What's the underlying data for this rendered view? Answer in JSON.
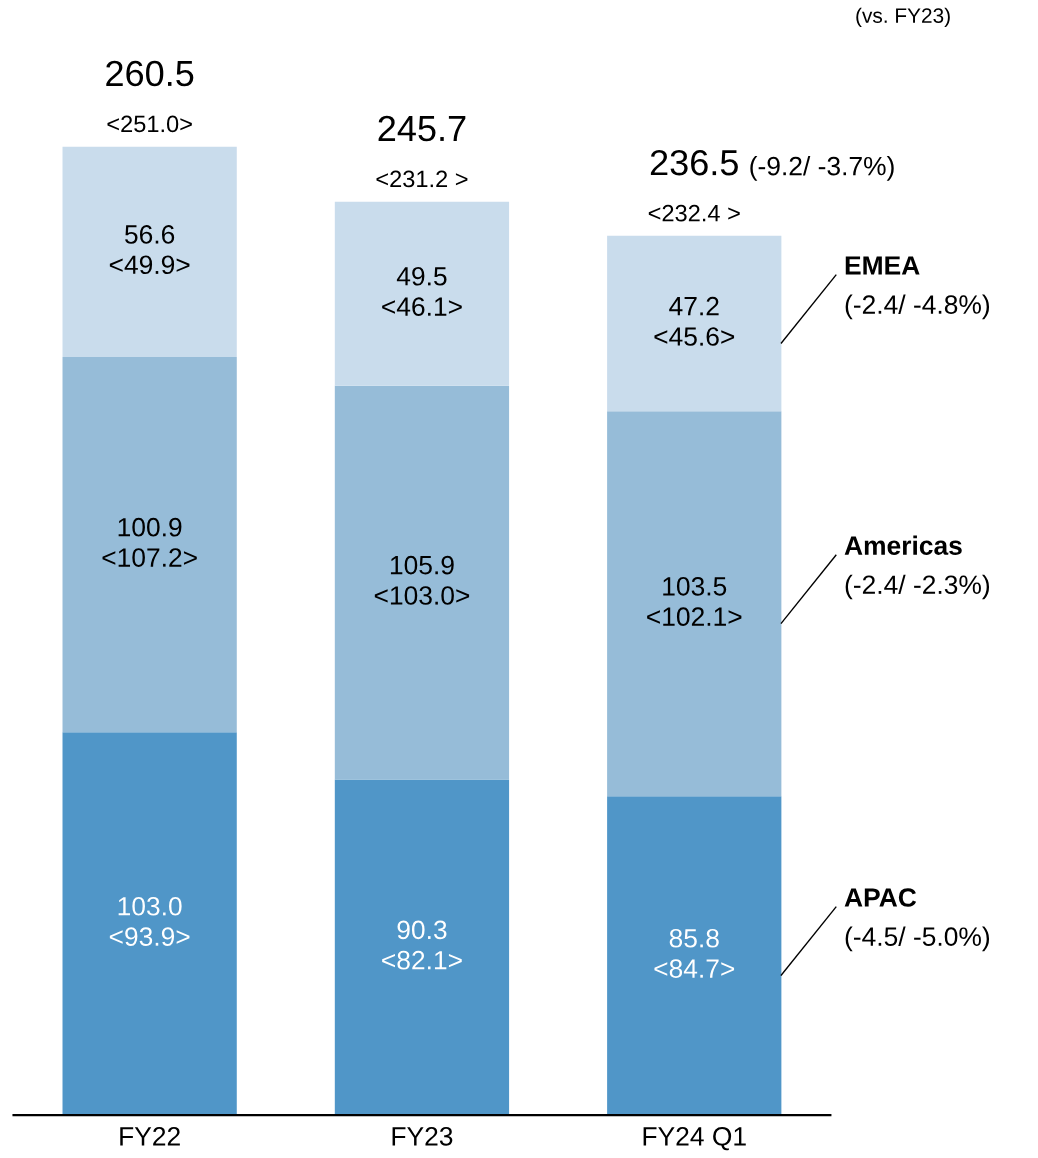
{
  "chart_data": {
    "type": "bar",
    "stacked": true,
    "categories": [
      "FY22",
      "FY23",
      "FY24 Q1"
    ],
    "series": [
      {
        "name": "APAC",
        "color": "#5096c8",
        "values": [
          103.0,
          90.3,
          85.8
        ],
        "value_labels": [
          "103.0\n<93.9>",
          "90.3\n<82.1>",
          "85.8\n<84.7>"
        ]
      },
      {
        "name": "Americas",
        "color": "#96bcd8",
        "values": [
          100.9,
          105.9,
          103.5
        ],
        "value_labels": [
          "100.9\n<107.2>",
          "105.9\n<103.0>",
          "103.5\n<102.1>"
        ]
      },
      {
        "name": "EMEA",
        "color": "#c9dcec",
        "values": [
          56.6,
          49.5,
          47.2
        ],
        "value_labels": [
          "56.6\n<49.9>",
          "49.5\n<46.1>",
          "47.2\n<45.6>"
        ]
      }
    ],
    "totals": [
      "260.5\n<251.0>",
      "245.7\n<231.2 >",
      "236.5\n<232.4 >"
    ],
    "annotations": [
      "(-4.5/ -5.0%)",
      "(-2.4/ -2.3%)",
      "(-2.4/ -4.8%)",
      "(-9.2/ -3.7%)",
      "(vs. FY23)"
    ],
    "grid": false
  }
}
